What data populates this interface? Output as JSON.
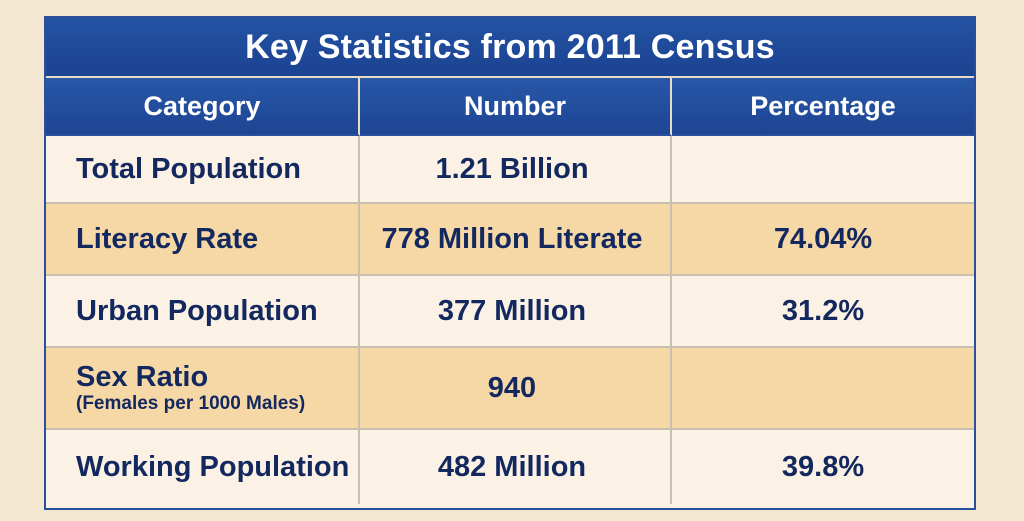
{
  "table": {
    "title": "Key Statistics from 2011 Census",
    "headers": [
      "Category",
      "Number",
      "Percentage"
    ],
    "rows": [
      {
        "category": "Total Population",
        "subtext": "",
        "number": "1.21 Billion",
        "percentage": "",
        "shaded": false
      },
      {
        "category": "Literacy Rate",
        "subtext": "",
        "number": "778 Million Literate",
        "percentage": "74.04%",
        "shaded": true
      },
      {
        "category": "Urban Population",
        "subtext": "",
        "number": "377 Million",
        "percentage": "31.2%",
        "shaded": false
      },
      {
        "category": "Sex Ratio",
        "subtext": "(Females per 1000 Males)",
        "number": "940",
        "percentage": "",
        "shaded": true
      },
      {
        "category": "Working Population",
        "subtext": "",
        "number": "482 Million",
        "percentage": "39.8%",
        "shaded": false
      }
    ]
  },
  "colors": {
    "header_blue": "#1d4593",
    "text_navy": "#13285f",
    "row_shaded": "#f6d8a6",
    "row_light": "#fbf2e5",
    "background": "#f3e7d2"
  }
}
